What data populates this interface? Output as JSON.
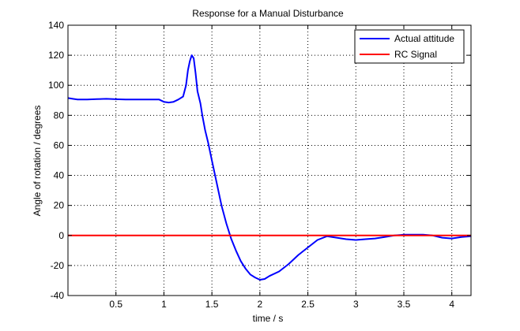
{
  "chart_data": {
    "type": "line",
    "title": "Response for a Manual Disturbance",
    "xlabel": "time / s",
    "ylabel": "Angle of rotation / degrees",
    "xlim": [
      0,
      4.2
    ],
    "ylim": [
      -40,
      140
    ],
    "xticks": [
      0.5,
      1,
      1.5,
      2,
      2.5,
      3,
      3.5,
      4
    ],
    "xtick_labels": [
      "0.5",
      "1",
      "1.5",
      "2",
      "2.5",
      "3",
      "3.5",
      "4"
    ],
    "yticks": [
      -40,
      -20,
      0,
      20,
      40,
      60,
      80,
      100,
      120,
      140
    ],
    "ytick_labels": [
      "-40",
      "-20",
      "0",
      "20",
      "40",
      "60",
      "80",
      "100",
      "120",
      "140"
    ],
    "grid": true,
    "legend_position": "top-right",
    "series": [
      {
        "name": "Actual attitude",
        "color": "#0000ff",
        "x": [
          0,
          0.05,
          0.1,
          0.2,
          0.3,
          0.4,
          0.5,
          0.6,
          0.7,
          0.8,
          0.9,
          0.95,
          1.0,
          1.05,
          1.1,
          1.15,
          1.2,
          1.23,
          1.25,
          1.27,
          1.29,
          1.31,
          1.33,
          1.35,
          1.38,
          1.4,
          1.43,
          1.46,
          1.5,
          1.55,
          1.6,
          1.65,
          1.7,
          1.75,
          1.8,
          1.85,
          1.9,
          1.95,
          2.0,
          2.05,
          2.1,
          2.2,
          2.3,
          2.4,
          2.5,
          2.6,
          2.7,
          2.8,
          2.9,
          3.0,
          3.1,
          3.2,
          3.3,
          3.4,
          3.5,
          3.6,
          3.7,
          3.8,
          3.9,
          4.0,
          4.1,
          4.2
        ],
        "y": [
          91.5,
          91,
          90.5,
          90.5,
          90.8,
          91,
          90.7,
          90.5,
          90.5,
          90.5,
          90.5,
          90.5,
          89,
          88.5,
          89,
          90.5,
          92.5,
          100,
          110,
          116,
          120,
          118,
          108,
          96,
          88,
          80,
          70,
          62,
          50,
          35,
          20,
          8,
          -2,
          -10,
          -17,
          -22,
          -26,
          -28,
          -29.5,
          -29,
          -27,
          -24,
          -19,
          -13,
          -8,
          -3,
          -0.5,
          -1.5,
          -2.5,
          -3,
          -2.5,
          -2,
          -1,
          0,
          0.5,
          0.5,
          0.5,
          0,
          -1.5,
          -2,
          -1,
          -0.5
        ]
      },
      {
        "name": "RC Signal",
        "color": "#ff0000",
        "x": [
          0,
          4.2
        ],
        "y": [
          0,
          0
        ]
      }
    ]
  }
}
